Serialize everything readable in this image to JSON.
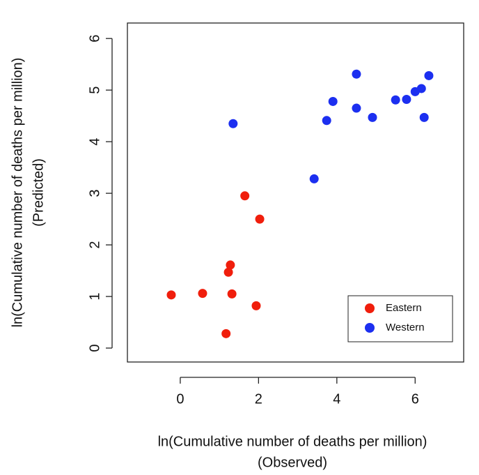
{
  "chart_data": {
    "type": "scatter",
    "xlabel": [
      "ln(Cumulative number of deaths per million)",
      "(Observed)"
    ],
    "ylabel": [
      "ln(Cumulative number of deaths per million)",
      "(Predicted)"
    ],
    "xlim": [
      -1.35,
      7.24
    ],
    "ylim": [
      -0.27,
      6.3
    ],
    "xticks": [
      0,
      2,
      4,
      6
    ],
    "yticks": [
      0,
      1,
      2,
      3,
      4,
      5,
      6
    ],
    "legend": "lower right",
    "series": [
      {
        "name": "Eastern",
        "color": "#f01e0c",
        "x": [
          -0.23,
          0.57,
          1.17,
          1.23,
          1.28,
          1.32,
          1.65,
          1.94,
          2.03
        ],
        "y": [
          1.03,
          1.06,
          0.28,
          1.47,
          1.61,
          1.05,
          2.95,
          0.82,
          2.5
        ]
      },
      {
        "name": "Western",
        "color": "#1c2ff0",
        "x": [
          1.35,
          3.42,
          3.74,
          3.9,
          4.5,
          4.5,
          4.91,
          5.5,
          5.78,
          6.0,
          6.16,
          6.23,
          6.35
        ],
        "y": [
          4.35,
          3.28,
          4.41,
          4.78,
          5.31,
          4.65,
          4.47,
          4.81,
          4.82,
          4.97,
          5.03,
          4.47,
          5.28
        ]
      }
    ]
  }
}
